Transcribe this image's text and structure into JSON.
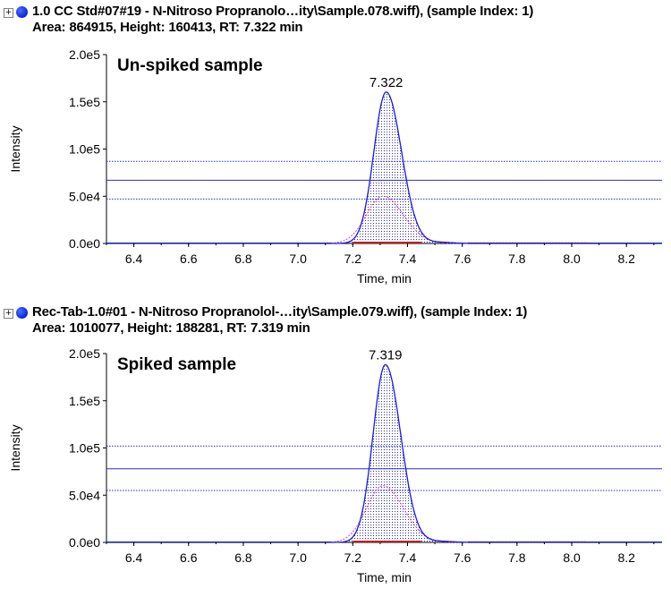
{
  "chart_data": [
    {
      "type": "line",
      "header": {
        "expander": "+",
        "title": "1.0 CC Std#07#19 - N-Nitroso Propranolo…ity\\Sample.078.wiff), (sample Index: 1)",
        "stats": "Area: 864915, Height: 160413, RT: 7.322 min"
      },
      "annotation": "Un-spiked sample",
      "xlabel": "Time, min",
      "ylabel": "Intensity",
      "xlim": [
        6.3,
        8.33
      ],
      "ylim": [
        0,
        200000
      ],
      "x_ticks": [
        "6.4",
        "6.6",
        "6.8",
        "7.0",
        "7.2",
        "7.4",
        "7.6",
        "7.8",
        "8.0",
        "8.2"
      ],
      "y_ticks": [
        "0.0e0",
        "5.0e4",
        "1.0e5",
        "1.5e5",
        "2.0e5"
      ],
      "peak": {
        "rt": 7.322,
        "height": 160413,
        "label": "7.322",
        "width": 0.045
      },
      "secondary_peak": {
        "rt": 7.31,
        "height": 50000,
        "width": 0.06
      },
      "hlines": [
        {
          "y": 67000,
          "style": "solid"
        },
        {
          "y": 87000,
          "style": "dotted"
        },
        {
          "y": 47000,
          "style": "dotted"
        }
      ],
      "grid": false
    },
    {
      "type": "line",
      "header": {
        "expander": "+",
        "title": "Rec-Tab-1.0#01 - N-Nitroso Propranolol-…ity\\Sample.079.wiff), (sample Index: 1)",
        "stats": "Area: 1010077, Height: 188281, RT: 7.319 min"
      },
      "annotation": "Spiked sample",
      "xlabel": "Time, min",
      "ylabel": "Intensity",
      "xlim": [
        6.3,
        8.33
      ],
      "ylim": [
        0,
        200000
      ],
      "x_ticks": [
        "6.4",
        "6.6",
        "6.8",
        "7.0",
        "7.2",
        "7.4",
        "7.6",
        "7.8",
        "8.0",
        "8.2"
      ],
      "y_ticks": [
        "0.0e0",
        "5.0e4",
        "1.0e5",
        "1.5e5",
        "2.0e5"
      ],
      "peak": {
        "rt": 7.319,
        "height": 188281,
        "label": "7.319",
        "width": 0.045
      },
      "secondary_peak": {
        "rt": 7.31,
        "height": 60000,
        "width": 0.06
      },
      "hlines": [
        {
          "y": 78000,
          "style": "solid"
        },
        {
          "y": 102000,
          "style": "dotted"
        },
        {
          "y": 55000,
          "style": "dotted"
        }
      ],
      "grid": false
    }
  ],
  "colors": {
    "trace": "#1a1ae6",
    "hline": "#2b2bd6",
    "secondary": "#d040c0",
    "baseline": "#c02020",
    "fill_dots": "#3030a0"
  }
}
